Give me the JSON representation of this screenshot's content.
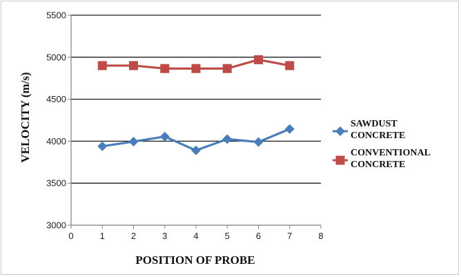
{
  "chart_data": {
    "type": "line",
    "xlabel": "POSITION OF PROBE",
    "ylabel": "VELOCITY (m/s)",
    "xlim": [
      0,
      8
    ],
    "ylim": [
      3000,
      5500
    ],
    "x_ticks": [
      0,
      1,
      2,
      3,
      4,
      5,
      6,
      7,
      8
    ],
    "y_ticks": [
      3000,
      3500,
      4000,
      4500,
      5000,
      5500
    ],
    "grid": "horizontal",
    "legend_position": "right",
    "series": [
      {
        "name_lines": [
          "SAWDUST",
          "CONCRETE"
        ],
        "color": "#4a7ebb",
        "marker": "diamond",
        "x": [
          1,
          2,
          3,
          4,
          5,
          6,
          7
        ],
        "values": [
          3940,
          3995,
          4055,
          3890,
          4025,
          3990,
          4145
        ]
      },
      {
        "name_lines": [
          "CONVENTIONAL",
          "CONCRETE"
        ],
        "color": "#be4b48",
        "marker": "square",
        "x": [
          1,
          2,
          3,
          4,
          5,
          6,
          7
        ],
        "values": [
          4900,
          4900,
          4865,
          4865,
          4865,
          4970,
          4900
        ]
      }
    ]
  }
}
